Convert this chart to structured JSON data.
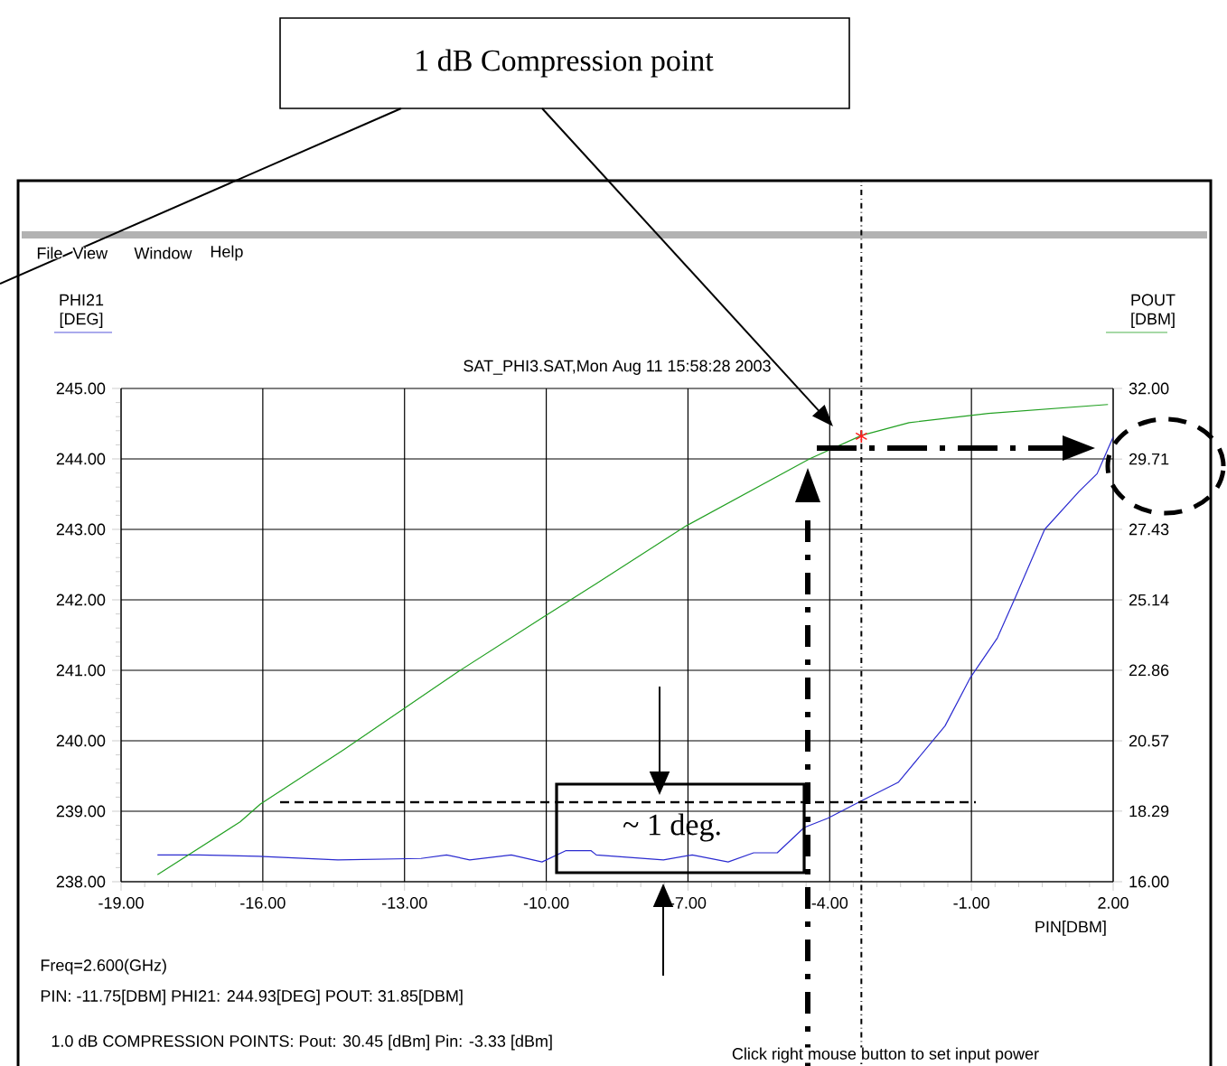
{
  "chart_data": {
    "type": "line",
    "title": "SAT_PHI3.SAT,Mon Aug 11 15:58:28 2003",
    "xlabel": "PIN[DBM]",
    "ylabel": "PHI21 [DEG]",
    "y2label": "POUT [DBM]",
    "xlim": [
      -19,
      2
    ],
    "xticks": [
      {
        "value": -19,
        "label": "-19.00"
      },
      {
        "value": -16,
        "label": "-16.00"
      },
      {
        "value": -13,
        "label": "-13.00"
      },
      {
        "value": -10,
        "label": "-10.00"
      },
      {
        "value": -7,
        "label": "-7.00"
      },
      {
        "value": -4,
        "label": "-4.00"
      },
      {
        "value": -1,
        "label": "-1.00"
      },
      {
        "value": 2,
        "label": "2.00"
      }
    ],
    "ylim": [
      238,
      245
    ],
    "yticks": [
      {
        "value": 238,
        "label": "238.00"
      },
      {
        "value": 239,
        "label": "239.00"
      },
      {
        "value": 240,
        "label": "240.00"
      },
      {
        "value": 241,
        "label": "241.00"
      },
      {
        "value": 242,
        "label": "242.00"
      },
      {
        "value": 243,
        "label": "243.00"
      },
      {
        "value": 244,
        "label": "244.00"
      },
      {
        "value": 245,
        "label": "245.00"
      }
    ],
    "y2lim": [
      16,
      32
    ],
    "y2ticks": [
      {
        "value": 16,
        "label": "16.00"
      },
      {
        "value": 18.29,
        "label": "18.29"
      },
      {
        "value": 20.57,
        "label": "20.57"
      },
      {
        "value": 22.86,
        "label": "22.86"
      },
      {
        "value": 25.14,
        "label": "25.14"
      },
      {
        "value": 27.43,
        "label": "27.43"
      },
      {
        "value": 29.71,
        "label": "29.71"
      },
      {
        "value": 32,
        "label": "32.00"
      }
    ],
    "grid": true,
    "series": [
      {
        "color": "#2b2bd0",
        "x": [
          -18.23,
          -17.35,
          -16.09,
          -14.41,
          -12.65,
          -12.11,
          -11.62,
          -10.74,
          -10.09,
          -9.59,
          -9.05,
          -8.94,
          -7.52,
          -6.91,
          -6.15,
          -5.61,
          -5.11,
          -4.54,
          -4.04,
          -3.32,
          -2.55,
          -1.56,
          -1.02,
          -0.45,
          -0.06,
          0.55,
          1.28,
          1.66,
          2.0
        ],
        "values": [
          238.38,
          238.38,
          238.36,
          238.31,
          238.33,
          238.38,
          238.31,
          238.38,
          238.28,
          238.44,
          238.44,
          238.38,
          238.31,
          238.38,
          238.28,
          238.41,
          238.41,
          238.77,
          238.9,
          239.15,
          239.41,
          240.21,
          240.9,
          241.46,
          242.05,
          243.0,
          243.54,
          243.79,
          244.31
        ]
      },
      {
        "axis": "y2",
        "color": "#22a022",
        "x": [
          -18.23,
          -16.48,
          -16.05,
          -14.29,
          -11.88,
          -10.09,
          -8.94,
          -7.03,
          -4.42,
          -3.32,
          -2.32,
          -0.64,
          1.89
        ],
        "values": [
          16.23,
          17.94,
          18.52,
          20.28,
          22.8,
          24.56,
          25.67,
          27.55,
          29.72,
          30.48,
          30.89,
          31.19,
          31.48
        ]
      },
      {
        "type": "scatter",
        "axis": "y2",
        "marker": "cross",
        "color": "#ff2020",
        "x": [
          -3.33
        ],
        "values": [
          30.45
        ]
      }
    ],
    "ref_lines": [
      {
        "axis": "x",
        "value": -3.33,
        "line_style": "dashdot",
        "color": "#000000"
      }
    ],
    "annotations": [
      "1 dB Compression point",
      "~ 1 deg.",
      "Freq=2.600(GHz)",
      "PIN: -11.75[DBM] PHI21: 244.93[DEG] POUT: 31.85[DBM]",
      "1.0 dB COMPRESSION POINTS: Pout: 30.45 [dBm] Pin: -3.33 [dBm]",
      "Click right mouse button to set input power",
      "File",
      "View",
      "Window",
      "Help"
    ]
  }
}
